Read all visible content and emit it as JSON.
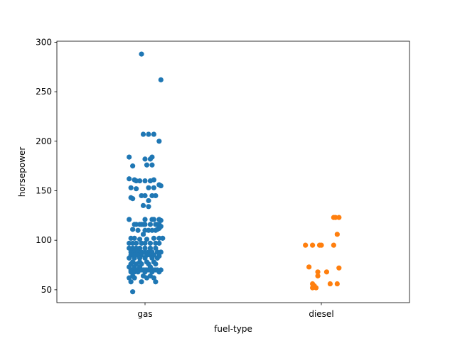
{
  "chart_data": {
    "type": "scatter",
    "subtype": "strip",
    "title": "",
    "xlabel": "fuel-type",
    "ylabel": "horsepower",
    "categories": [
      "gas",
      "diesel"
    ],
    "ylim": [
      37,
      301
    ],
    "yticks": [
      50,
      100,
      150,
      200,
      250,
      300
    ],
    "grid": false,
    "legend": "none",
    "series": [
      {
        "category": "gas",
        "color": "#1f77b4",
        "points": [
          [
            -0.02,
            288
          ],
          [
            0.09,
            262
          ],
          [
            0.08,
            200
          ],
          [
            -0.01,
            207
          ],
          [
            0.02,
            207
          ],
          [
            0.05,
            207
          ],
          [
            0.04,
            184
          ],
          [
            0.0,
            182
          ],
          [
            0.03,
            182
          ],
          [
            -0.09,
            184
          ],
          [
            -0.07,
            175
          ],
          [
            -0.09,
            162
          ],
          [
            -0.05,
            160
          ],
          [
            -0.03,
            160
          ],
          [
            0.0,
            160
          ],
          [
            0.03,
            160
          ],
          [
            0.05,
            161
          ],
          [
            0.01,
            176
          ],
          [
            0.04,
            176
          ],
          [
            -0.06,
            161
          ],
          [
            0.09,
            155
          ],
          [
            0.08,
            156
          ],
          [
            -0.08,
            153
          ],
          [
            0.02,
            153
          ],
          [
            0.05,
            153
          ],
          [
            -0.05,
            152
          ],
          [
            -0.02,
            145
          ],
          [
            0.0,
            145
          ],
          [
            0.04,
            145
          ],
          [
            0.06,
            145
          ],
          [
            -0.08,
            143
          ],
          [
            -0.07,
            142
          ],
          [
            0.02,
            140
          ],
          [
            -0.01,
            135
          ],
          [
            0.02,
            134
          ],
          [
            -0.09,
            121
          ],
          [
            0.0,
            121
          ],
          [
            0.04,
            121
          ],
          [
            0.05,
            121
          ],
          [
            0.08,
            121
          ],
          [
            0.09,
            120
          ],
          [
            0.03,
            116
          ],
          [
            -0.06,
            116
          ],
          [
            -0.05,
            116
          ],
          [
            -0.03,
            116
          ],
          [
            -0.02,
            116
          ],
          [
            -0.01,
            116
          ],
          [
            0.0,
            116
          ],
          [
            0.06,
            116
          ],
          [
            0.07,
            116
          ],
          [
            0.08,
            116
          ],
          [
            -0.07,
            111
          ],
          [
            -0.04,
            110
          ],
          [
            0.0,
            110
          ],
          [
            0.02,
            110
          ],
          [
            0.04,
            110
          ],
          [
            0.06,
            110
          ],
          [
            0.07,
            111
          ],
          [
            0.08,
            112
          ],
          [
            0.09,
            114
          ],
          [
            -0.01,
            106
          ],
          [
            -0.08,
            102
          ],
          [
            -0.06,
            102
          ],
          [
            -0.03,
            101
          ],
          [
            0.01,
            101
          ],
          [
            0.05,
            102
          ],
          [
            0.08,
            102
          ],
          [
            0.1,
            102
          ],
          [
            -0.09,
            97
          ],
          [
            -0.07,
            97
          ],
          [
            -0.05,
            97
          ],
          [
            -0.02,
            97
          ],
          [
            0.0,
            97
          ],
          [
            0.03,
            97
          ],
          [
            0.06,
            97
          ],
          [
            0.08,
            97
          ],
          [
            -0.09,
            92
          ],
          [
            -0.07,
            92
          ],
          [
            -0.05,
            92
          ],
          [
            -0.03,
            92
          ],
          [
            0.0,
            92
          ],
          [
            0.03,
            92
          ],
          [
            0.06,
            92
          ],
          [
            -0.08,
            88
          ],
          [
            -0.06,
            88
          ],
          [
            -0.04,
            88
          ],
          [
            -0.02,
            88
          ],
          [
            0.0,
            88
          ],
          [
            0.02,
            88
          ],
          [
            0.04,
            88
          ],
          [
            0.07,
            88
          ],
          [
            0.09,
            88
          ],
          [
            -0.08,
            85
          ],
          [
            -0.06,
            85
          ],
          [
            -0.04,
            85
          ],
          [
            -0.02,
            85
          ],
          [
            0.01,
            85
          ],
          [
            0.03,
            85
          ],
          [
            0.05,
            85
          ],
          [
            0.08,
            84
          ],
          [
            -0.09,
            82
          ],
          [
            -0.06,
            82
          ],
          [
            -0.03,
            82
          ],
          [
            0.0,
            82
          ],
          [
            0.04,
            82
          ],
          [
            0.07,
            82
          ],
          [
            -0.07,
            78
          ],
          [
            -0.03,
            78
          ],
          [
            0.01,
            78
          ],
          [
            0.05,
            78
          ],
          [
            -0.08,
            76
          ],
          [
            -0.05,
            76
          ],
          [
            -0.02,
            76
          ],
          [
            0.02,
            76
          ],
          [
            0.06,
            76
          ],
          [
            -0.09,
            73
          ],
          [
            -0.06,
            73
          ],
          [
            -0.03,
            73
          ],
          [
            0.03,
            73
          ],
          [
            -0.08,
            70
          ],
          [
            -0.07,
            70
          ],
          [
            -0.06,
            70
          ],
          [
            -0.05,
            70
          ],
          [
            -0.04,
            70
          ],
          [
            -0.03,
            70
          ],
          [
            -0.02,
            70
          ],
          [
            -0.01,
            70
          ],
          [
            0.0,
            70
          ],
          [
            0.01,
            70
          ],
          [
            0.02,
            70
          ],
          [
            0.03,
            70
          ],
          [
            0.04,
            70
          ],
          [
            0.05,
            70
          ],
          [
            0.06,
            70
          ],
          [
            0.07,
            70
          ],
          [
            0.09,
            70
          ],
          [
            -0.08,
            68
          ],
          [
            -0.06,
            68
          ],
          [
            -0.04,
            68
          ],
          [
            0.0,
            68
          ],
          [
            0.04,
            68
          ],
          [
            0.08,
            68
          ],
          [
            -0.07,
            64
          ],
          [
            -0.01,
            64
          ],
          [
            0.03,
            64
          ],
          [
            -0.09,
            62
          ],
          [
            -0.06,
            62
          ],
          [
            0.01,
            62
          ],
          [
            0.05,
            62
          ],
          [
            -0.08,
            58
          ],
          [
            -0.02,
            58
          ],
          [
            0.06,
            58
          ],
          [
            -0.07,
            48
          ]
        ]
      },
      {
        "category": "diesel",
        "color": "#ff7f0e",
        "points": [
          [
            0.07,
            123
          ],
          [
            0.08,
            123
          ],
          [
            0.1,
            123
          ],
          [
            0.09,
            106
          ],
          [
            -0.09,
            95
          ],
          [
            -0.05,
            95
          ],
          [
            -0.01,
            95
          ],
          [
            0.0,
            95
          ],
          [
            0.07,
            95
          ],
          [
            -0.07,
            73
          ],
          [
            0.1,
            72
          ],
          [
            -0.02,
            68
          ],
          [
            0.03,
            68
          ],
          [
            -0.02,
            64
          ],
          [
            -0.05,
            56
          ],
          [
            0.05,
            56
          ],
          [
            0.09,
            56
          ],
          [
            -0.04,
            54
          ],
          [
            -0.03,
            52
          ],
          [
            -0.05,
            52
          ]
        ]
      }
    ]
  }
}
